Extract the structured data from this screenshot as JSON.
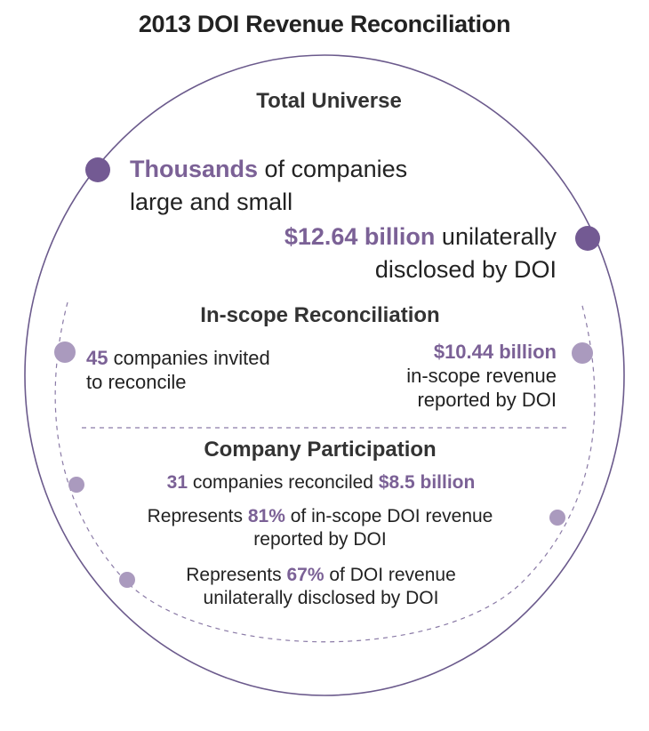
{
  "title": "2013 DOI Revenue Reconciliation",
  "colors": {
    "accent": "#7b6196",
    "dot_dark": "#735a93",
    "dot_light": "#aa9abe",
    "outline": "#6b5a8c",
    "text": "#222222"
  },
  "total_universe": {
    "heading": "Total Universe",
    "companies_hl": "Thousands",
    "companies_rest": "of companies",
    "companies_line2": "large and small",
    "revenue_hl": "$12.64 billion",
    "revenue_rest": "unilaterally",
    "revenue_line2": "disclosed by DOI"
  },
  "in_scope": {
    "heading": "In-scope Reconciliation",
    "companies_hl": "45",
    "companies_rest": "companies invited",
    "companies_line2": "to reconcile",
    "revenue_hl": "$10.44 billion",
    "revenue_line2": "in-scope revenue",
    "revenue_line3": "reported by DOI"
  },
  "participation": {
    "heading": "Company Participation",
    "count_hl": "31",
    "count_rest": "companies reconciled",
    "amount_hl": "$8.5 billion",
    "rep1_pre": "Represents",
    "rep1_pct": "81%",
    "rep1_post": "of in-scope DOI revenue",
    "rep1_line2": "reported by DOI",
    "rep2_pre": "Represents",
    "rep2_pct": "67%",
    "rep2_post": "of DOI revenue",
    "rep2_line2": "unilaterally disclosed by DOI"
  }
}
